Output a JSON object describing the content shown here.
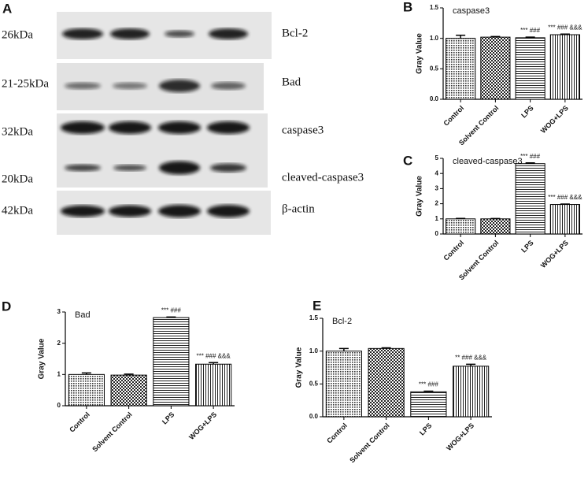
{
  "blot": {
    "panel": "A",
    "rows": [
      {
        "kda": "26kDa",
        "protein": "Bcl-2"
      },
      {
        "kda": "21-25kDa",
        "protein": "Bad"
      },
      {
        "kda": "32kDa",
        "protein": "caspase3"
      },
      {
        "kda": "20kDa",
        "protein": "cleaved-caspase3"
      },
      {
        "kda": "42kDa",
        "protein": "β-actin"
      }
    ]
  },
  "chart_data": [
    {
      "type": "bar",
      "panel": "B",
      "title": "caspase3",
      "y_label": "Gray Value",
      "categories": [
        "Control",
        "Solvent Control",
        "LPS",
        "WOG+LPS"
      ],
      "values": [
        1.0,
        1.02,
        1.01,
        1.06
      ],
      "errors": [
        0.05,
        0.01,
        0.01,
        0.01
      ],
      "significance": [
        null,
        null,
        "*** ###",
        "*** ### &&&"
      ],
      "patterns": [
        "dots",
        "checker",
        "hlines",
        "vlines"
      ],
      "ylim": [
        0,
        1.5
      ],
      "yticks": [
        {
          "value": 0,
          "label": "0.0"
        },
        0.5,
        {
          "value": 1,
          "label": "1.0"
        },
        1.5
      ]
    },
    {
      "type": "bar",
      "panel": "C",
      "title": "cleaved-caspase3",
      "y_label": "Gray Value",
      "categories": [
        "Control",
        "Solvent Control",
        "LPS",
        "WOG+LPS"
      ],
      "values": [
        1.0,
        1.0,
        4.65,
        1.95
      ],
      "errors": [
        0.03,
        0.02,
        0.05,
        0.03
      ],
      "significance": [
        null,
        null,
        "*** ###",
        "*** ### &&&"
      ],
      "patterns": [
        "dots",
        "checker",
        "hlines",
        "vlines"
      ],
      "ylim": [
        0,
        5
      ],
      "yticks": [
        0,
        1,
        2,
        3,
        4,
        5
      ]
    },
    {
      "type": "bar",
      "panel": "D",
      "title": "Bad",
      "y_label": "Gray Value",
      "categories": [
        "Control",
        "Solvent Control",
        "LPS",
        "WOG+LPS"
      ],
      "values": [
        1.0,
        0.98,
        2.82,
        1.33
      ],
      "errors": [
        0.05,
        0.03,
        0.02,
        0.05
      ],
      "significance": [
        null,
        null,
        "*** ###",
        "*** ### &&&"
      ],
      "patterns": [
        "dots",
        "checker",
        "hlines",
        "vlines"
      ],
      "ylim": [
        0,
        3
      ],
      "yticks": [
        0,
        1,
        2,
        3
      ]
    },
    {
      "type": "bar",
      "panel": "E",
      "title": "Bcl-2",
      "y_label": "Gray Value",
      "categories": [
        "Control",
        "Solvent Control",
        "LPS",
        "WOG+LPS"
      ],
      "values": [
        1.0,
        1.04,
        0.38,
        0.77
      ],
      "errors": [
        0.04,
        0.01,
        0.01,
        0.03
      ],
      "significance": [
        null,
        null,
        "*** ###",
        "** ### &&&"
      ],
      "patterns": [
        "dots",
        "checker",
        "hlines",
        "vlines"
      ],
      "ylim": [
        0,
        1.5
      ],
      "yticks": [
        {
          "value": 0,
          "label": "0.0"
        },
        0.5,
        {
          "value": 1,
          "label": "1.0"
        },
        1.5
      ]
    }
  ]
}
